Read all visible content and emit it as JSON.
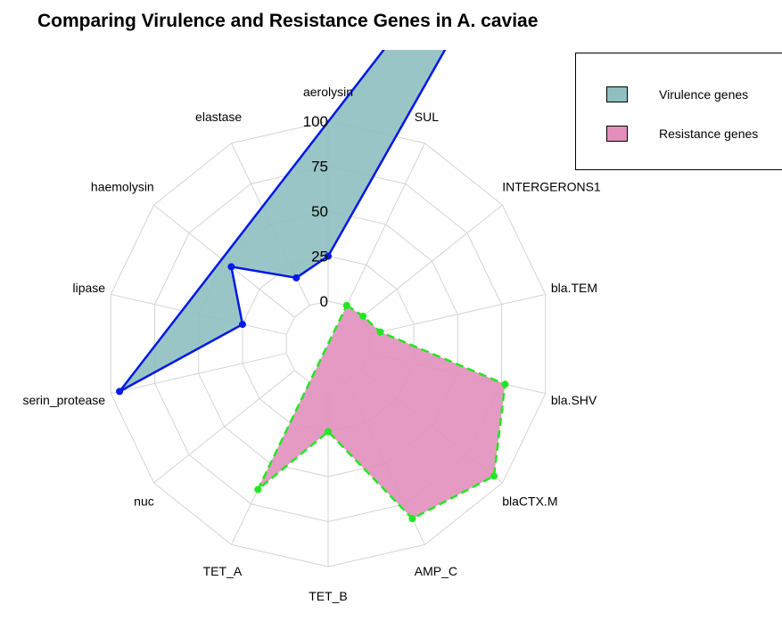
{
  "chart_data": {
    "type": "radar",
    "title": "Comparing Virulence and Resistance Genes in A. caviae",
    "axes": [
      "aerolysin",
      "SUL",
      "INTERGERONS1",
      "bla.TEM",
      "bla.SHV",
      "blaCTX.M",
      "AMP_C",
      "TET_B",
      "TET_A",
      "nuc",
      "serin_protease",
      "lipase",
      "haemolysin",
      "elastase"
    ],
    "rlim": [
      0,
      100
    ],
    "ring_ticks": [
      "0",
      "25",
      "50",
      "75",
      "100"
    ],
    "grid": true,
    "legend_position": "top-right",
    "series": [
      {
        "name": "Virulence genes",
        "fill": "#8fbfc0",
        "stroke": "#0018e8",
        "line_style": "solid",
        "values": [
          25,
          340,
          null,
          null,
          null,
          null,
          null,
          null,
          null,
          null,
          95,
          25,
          45,
          17
        ]
      },
      {
        "name": "Resistance genes",
        "fill": "#e28fbc",
        "stroke": "#22e622",
        "line_style": "dashed",
        "values": [
          null,
          0,
          1,
          6,
          77,
          94,
          84,
          25,
          66,
          null,
          null,
          null,
          null,
          null
        ]
      }
    ]
  }
}
